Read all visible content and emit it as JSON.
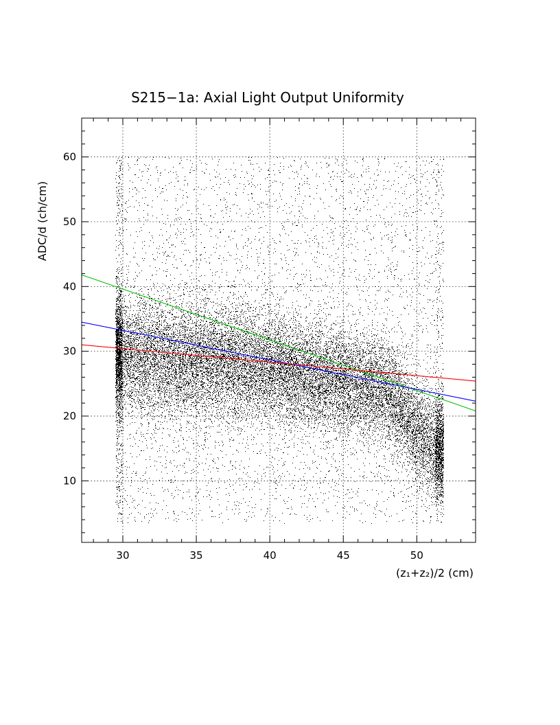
{
  "chart_data": {
    "type": "scatter",
    "title": "S215−1a: Axial Light Output Uniformity",
    "xlabel": "(z₁+z₂)/2 (cm)",
    "ylabel": "ADC/d (ch/cm)",
    "xlim": [
      27.2,
      54.0
    ],
    "ylim": [
      0.5,
      66.0
    ],
    "x_ticks": [
      30,
      35,
      40,
      45,
      50
    ],
    "x_tick_labels": [
      "30",
      "35",
      "40",
      "45",
      "50"
    ],
    "y_ticks": [
      10,
      20,
      30,
      40,
      50,
      60
    ],
    "y_tick_labels": [
      "10",
      "20",
      "30",
      "40",
      "50",
      "60"
    ],
    "grid": true,
    "grid_style": "dotted",
    "scatter_series": {
      "name": "",
      "marker": "dot",
      "color": "#000000",
      "approx_point_count": 30000,
      "x_range": [
        29.5,
        51.8
      ],
      "y_range": [
        3.5,
        60.0
      ],
      "density_profile": [
        {
          "x": 30,
          "y_center": 29.5,
          "y_spread": 4.5
        },
        {
          "x": 35,
          "y_center": 28.5,
          "y_spread": 4.5
        },
        {
          "x": 40,
          "y_center": 27.5,
          "y_spread": 4.0
        },
        {
          "x": 45,
          "y_center": 25.5,
          "y_spread": 4.0
        },
        {
          "x": 48,
          "y_center": 24.0,
          "y_spread": 4.0
        },
        {
          "x": 51,
          "y_center": 15.0,
          "y_spread": 4.0
        }
      ]
    },
    "fit_lines": [
      {
        "name": "",
        "color": "#00c000",
        "points": [
          [
            27.2,
            41.8
          ],
          [
            54.0,
            20.8
          ]
        ]
      },
      {
        "name": "",
        "color": "#0000ff",
        "points": [
          [
            27.2,
            34.5
          ],
          [
            54.0,
            22.3
          ]
        ]
      },
      {
        "name": "",
        "color": "#ff0000",
        "points": [
          [
            27.2,
            31.0
          ],
          [
            54.0,
            25.4
          ]
        ]
      }
    ]
  }
}
